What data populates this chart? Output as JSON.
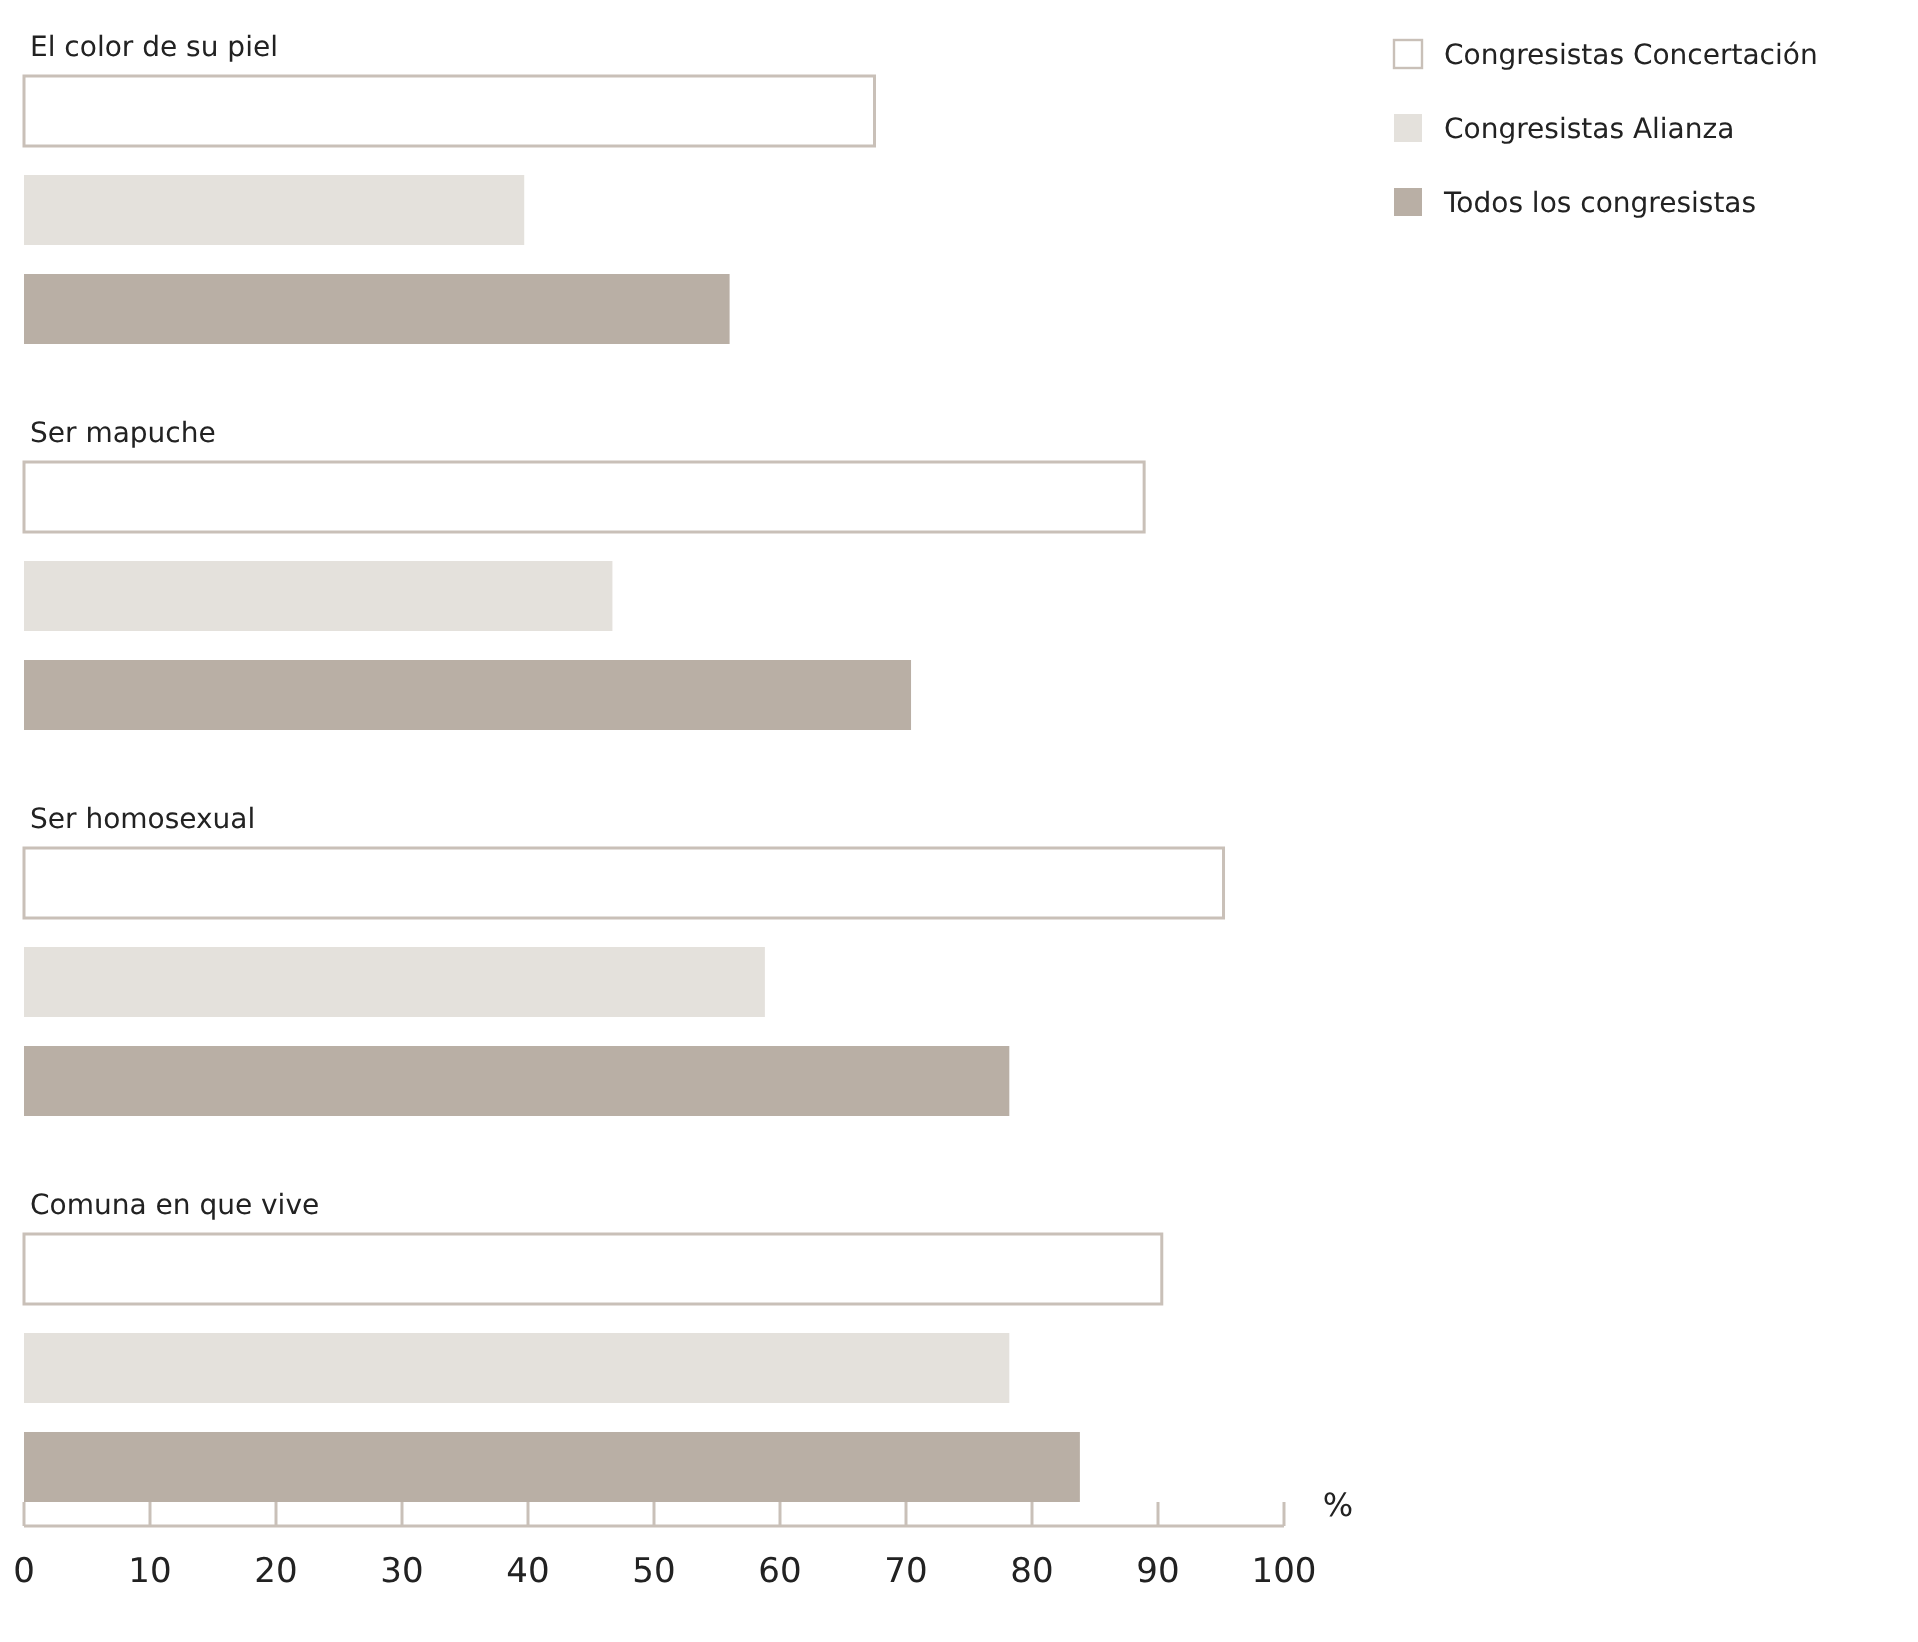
{
  "chart_data": {
    "type": "bar",
    "orientation": "horizontal",
    "categories": [
      "El color de su piel",
      "Ser mapuche",
      "Ser homosexual",
      "Comuna en que vive"
    ],
    "series": [
      {
        "name": "Congresistas Concertación",
        "color": "#ffffff",
        "values": [
          67.5,
          88.9,
          95.2,
          90.3
        ]
      },
      {
        "name": "Congresistas Alianza",
        "color": "#e4e1dc",
        "values": [
          39.7,
          46.7,
          58.8,
          78.2
        ]
      },
      {
        "name": "Todos los congresistas",
        "color": "#b9afa5",
        "values": [
          56,
          70.4,
          78.2,
          83.8
        ]
      }
    ],
    "xlabel": "%",
    "xlim": [
      0,
      100
    ],
    "xticks": [
      0,
      10,
      20,
      30,
      40,
      50,
      60,
      70,
      80,
      90,
      100
    ],
    "legend": "top right",
    "grid": false
  }
}
